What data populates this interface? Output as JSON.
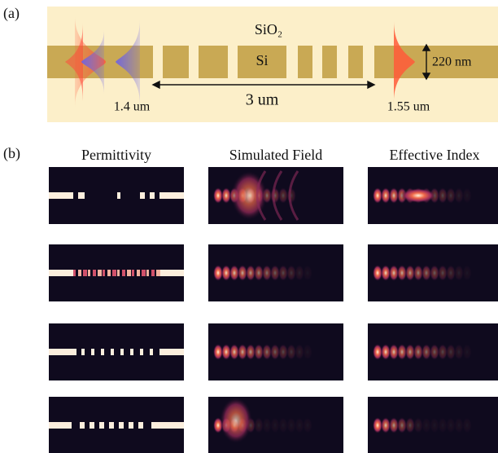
{
  "panel_a": {
    "label": "(a)",
    "cladding": "SiO₂",
    "core": "Si",
    "thickness": "220 nm",
    "wavelength_short": "1.4 um",
    "length": "3 um",
    "wavelength_long": "1.55 um"
  },
  "panel_b": {
    "label": "(b)",
    "columns": [
      "Permittivity",
      "Simulated Field",
      "Effective Index"
    ]
  }
}
